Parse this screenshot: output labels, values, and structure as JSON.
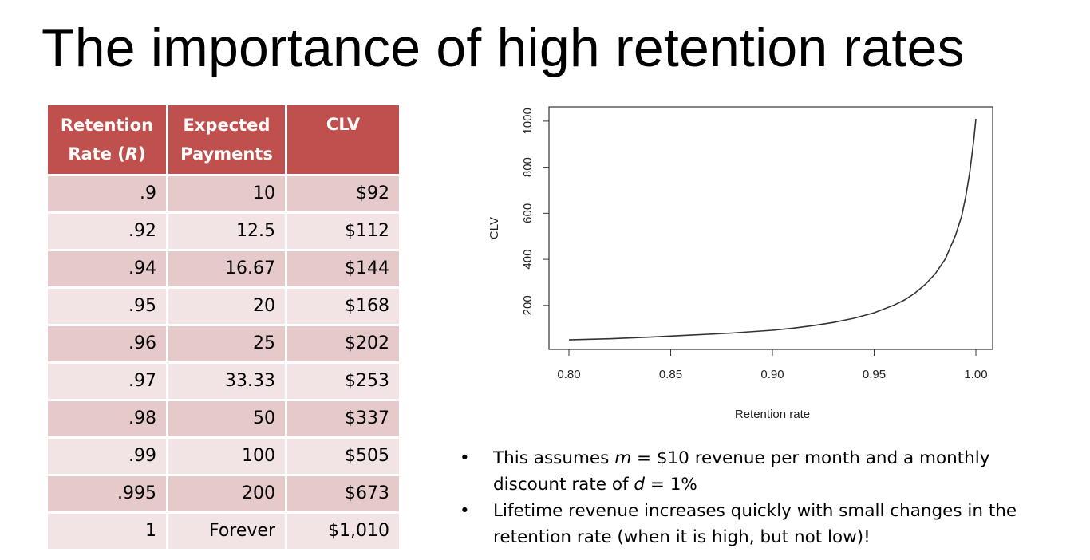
{
  "slide": {
    "title": "The importance of high retention rates"
  },
  "table": {
    "headers": {
      "rate_line1": "Retention",
      "rate_line2_prefix": "Rate (",
      "rate_line2_var": "R",
      "rate_line2_suffix": ")",
      "payments_line1": "Expected",
      "payments_line2": "Payments",
      "clv": "CLV"
    },
    "rows": [
      {
        "rate": ".9",
        "payments": "10",
        "clv": "$92"
      },
      {
        "rate": ".92",
        "payments": "12.5",
        "clv": "$112"
      },
      {
        "rate": ".94",
        "payments": "16.67",
        "clv": "$144"
      },
      {
        "rate": ".95",
        "payments": "20",
        "clv": "$168"
      },
      {
        "rate": ".96",
        "payments": "25",
        "clv": "$202"
      },
      {
        "rate": ".97",
        "payments": "33.33",
        "clv": "$253"
      },
      {
        "rate": ".98",
        "payments": "50",
        "clv": "$337"
      },
      {
        "rate": ".99",
        "payments": "100",
        "clv": "$505"
      },
      {
        "rate": ".995",
        "payments": "200",
        "clv": "$673"
      },
      {
        "rate": "1",
        "payments": "Forever",
        "clv": "$1,010"
      }
    ]
  },
  "chart_data": {
    "type": "line",
    "title": "",
    "xlabel": "Retention rate",
    "ylabel": "CLV",
    "xlim": [
      0.8,
      1.0
    ],
    "ylim": [
      40,
      1010
    ],
    "x_ticks": [
      0.8,
      0.85,
      0.9,
      0.95,
      1.0
    ],
    "x_tick_labels": [
      "0.80",
      "0.85",
      "0.90",
      "0.95",
      "1.00"
    ],
    "y_ticks": [
      200,
      400,
      600,
      800,
      1000
    ],
    "y_tick_labels": [
      "200",
      "400",
      "600",
      "800",
      "1000"
    ],
    "grid": false,
    "line_color": "#333333",
    "x": [
      0.8,
      0.82,
      0.84,
      0.86,
      0.88,
      0.9,
      0.91,
      0.92,
      0.93,
      0.94,
      0.95,
      0.96,
      0.965,
      0.97,
      0.975,
      0.98,
      0.985,
      0.99,
      0.993,
      0.995,
      0.997,
      0.999,
      1.0
    ],
    "y": [
      50,
      55,
      62,
      71,
      80,
      92,
      101,
      112,
      126,
      144,
      168,
      202,
      224,
      253,
      290,
      337,
      402,
      505,
      587,
      673,
      778,
      922,
      1010
    ]
  },
  "notes": {
    "b1_pre": "This assumes ",
    "b1_var_m": "m",
    "b1_mid": " = $10 revenue per month and a monthly discount rate of ",
    "b1_var_d": "d",
    "b1_post": " = 1%",
    "b2": "Lifetime revenue increases quickly with small changes in the retention rate (when it is high, but not low)!"
  }
}
